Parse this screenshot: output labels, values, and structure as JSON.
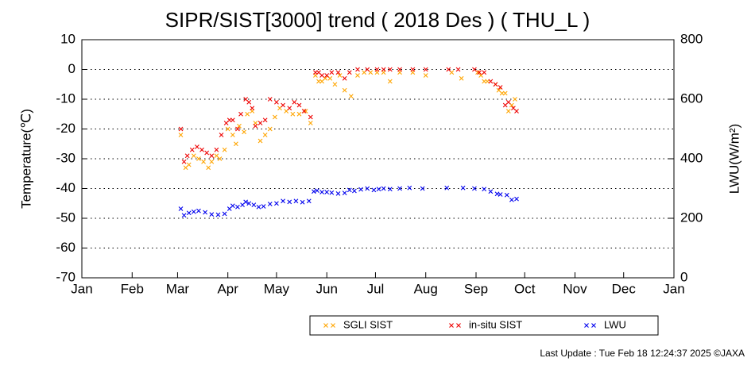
{
  "chart_data": {
    "type": "scatter",
    "title": "SIPR/SIST[3000] trend ( 2018 Des ) ( THU_L )",
    "ylabel": "Temperature(℃)",
    "y2label": "LWU(W/m²)",
    "xlim": [
      0,
      365
    ],
    "xticks": [
      {
        "value": 0,
        "label": "Jan"
      },
      {
        "value": 31,
        "label": "Feb"
      },
      {
        "value": 59,
        "label": "Mar"
      },
      {
        "value": 90,
        "label": "Apr"
      },
      {
        "value": 120,
        "label": "May"
      },
      {
        "value": 151,
        "label": "Jun"
      },
      {
        "value": 181,
        "label": "Jul"
      },
      {
        "value": 212,
        "label": "Aug"
      },
      {
        "value": 243,
        "label": "Sep"
      },
      {
        "value": 273,
        "label": "Oct"
      },
      {
        "value": 304,
        "label": "Nov"
      },
      {
        "value": 334,
        "label": "Dec"
      },
      {
        "value": 365,
        "label": "Jan"
      }
    ],
    "ylim": [
      -70,
      10
    ],
    "yticks": [
      -70,
      -60,
      -50,
      -40,
      -30,
      -20,
      -10,
      0,
      10
    ],
    "y2lim": [
      0,
      800
    ],
    "y2ticks": [
      0,
      200,
      400,
      600,
      800
    ],
    "grid": true,
    "series": [
      {
        "name": "SGLI SIST",
        "color": "#ffa500",
        "x": [
          61,
          64,
          66,
          69,
          72,
          75,
          78,
          80,
          83,
          85,
          88,
          90,
          93,
          95,
          97,
          100,
          102,
          105,
          107,
          110,
          113,
          116,
          119,
          122,
          126,
          130,
          134,
          138,
          141,
          144,
          146,
          148,
          150,
          153,
          156,
          159,
          162,
          166,
          170,
          174,
          178,
          182,
          186,
          190,
          196,
          204,
          212,
          228,
          234,
          244,
          246,
          248,
          250,
          255,
          257,
          259,
          261,
          263,
          265,
          267
        ],
        "values": [
          -22,
          -33,
          -32,
          -29,
          -30,
          -31,
          -33,
          -31,
          -29,
          -30,
          -27,
          -20,
          -22,
          -25,
          -19,
          -21,
          -15,
          -14,
          -18,
          -24,
          -22,
          -20,
          -16,
          -13,
          -14,
          -15,
          -15,
          -14,
          -18,
          -2,
          -4,
          -4,
          -3,
          -3,
          -5,
          -2,
          -7,
          -9,
          -2,
          -1,
          -1,
          -1,
          -1,
          -4,
          -1,
          -1,
          -2,
          -1,
          -3,
          -1,
          -2,
          -4,
          -4,
          -5,
          -7,
          -8,
          -8,
          -14,
          -12,
          -10
        ]
      },
      {
        "name": "in-situ SIST",
        "color": "#ee0000",
        "x": [
          61,
          63,
          65,
          68,
          71,
          74,
          77,
          80,
          83,
          86,
          89,
          91,
          93,
          96,
          98,
          101,
          103,
          105,
          107,
          110,
          113,
          116,
          120,
          124,
          128,
          131,
          134,
          137,
          141,
          144,
          146,
          148,
          151,
          154,
          158,
          162,
          165,
          170,
          176,
          182,
          186,
          190,
          196,
          204,
          212,
          226,
          232,
          242,
          245,
          248,
          252,
          255,
          258,
          261,
          263,
          266,
          268
        ],
        "values": [
          -20,
          -31,
          -29,
          -27,
          -26,
          -27,
          -28,
          -29,
          -27,
          -22,
          -18,
          -17,
          -17,
          -20,
          -15,
          -10,
          -11,
          -13,
          -19,
          -18,
          -17,
          -10,
          -11,
          -12,
          -13,
          -11,
          -12,
          -14,
          -16,
          -1,
          -1,
          -2,
          -2,
          -1,
          -1,
          -3,
          -1,
          0,
          0,
          0,
          0,
          0,
          0,
          0,
          0,
          0,
          0,
          0,
          -1,
          -1,
          -4,
          -5,
          -6,
          -12,
          -11,
          -13,
          -14
        ]
      },
      {
        "name": "LWU",
        "color": "#0000ee",
        "axis": "y2",
        "x": [
          61,
          63,
          66,
          69,
          72,
          76,
          80,
          84,
          88,
          91,
          93,
          96,
          99,
          101,
          103,
          106,
          109,
          112,
          116,
          120,
          124,
          128,
          132,
          136,
          140,
          143,
          145,
          148,
          151,
          154,
          158,
          162,
          165,
          168,
          172,
          176,
          180,
          183,
          186,
          190,
          196,
          202,
          210,
          225,
          235,
          242,
          248,
          252,
          256,
          258,
          262,
          265,
          268
        ],
        "values": [
          232,
          210,
          218,
          222,
          225,
          220,
          213,
          212,
          215,
          232,
          242,
          238,
          245,
          255,
          250,
          245,
          238,
          240,
          248,
          250,
          258,
          255,
          258,
          254,
          258,
          290,
          293,
          288,
          288,
          286,
          283,
          285,
          295,
          292,
          297,
          300,
          295,
          298,
          300,
          298,
          300,
          302,
          300,
          302,
          302,
          300,
          298,
          290,
          282,
          280,
          278,
          262,
          265
        ]
      }
    ],
    "footer": "Last Update : Tue Feb 18 12:24:37 2025 ©JAXA"
  }
}
